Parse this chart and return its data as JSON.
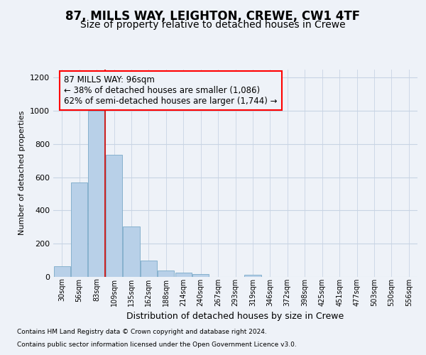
{
  "title1": "87, MILLS WAY, LEIGHTON, CREWE, CW1 4TF",
  "title2": "Size of property relative to detached houses in Crewe",
  "xlabel": "Distribution of detached houses by size in Crewe",
  "ylabel": "Number of detached properties",
  "footer1": "Contains HM Land Registry data © Crown copyright and database right 2024.",
  "footer2": "Contains public sector information licensed under the Open Government Licence v3.0.",
  "annotation_line1": "87 MILLS WAY: 96sqm",
  "annotation_line2": "← 38% of detached houses are smaller (1,086)",
  "annotation_line3": "62% of semi-detached houses are larger (1,744) →",
  "bar_labels": [
    "30sqm",
    "56sqm",
    "83sqm",
    "109sqm",
    "135sqm",
    "162sqm",
    "188sqm",
    "214sqm",
    "240sqm",
    "267sqm",
    "293sqm",
    "319sqm",
    "346sqm",
    "372sqm",
    "398sqm",
    "425sqm",
    "451sqm",
    "477sqm",
    "503sqm",
    "530sqm",
    "556sqm"
  ],
  "bar_values": [
    62,
    567,
    1000,
    735,
    302,
    97,
    37,
    24,
    15,
    0,
    0,
    13,
    0,
    0,
    0,
    0,
    0,
    0,
    0,
    0,
    0
  ],
  "bar_color": "#b8d0e8",
  "bar_edgecolor": "#7aaac8",
  "red_line_x": 2.5,
  "ylim": [
    0,
    1250
  ],
  "yticks": [
    0,
    200,
    400,
    600,
    800,
    1000,
    1200
  ],
  "background_color": "#eef2f8",
  "plot_background": "#eef2f8",
  "grid_color": "#c8d4e4",
  "title1_fontsize": 12,
  "title2_fontsize": 10,
  "annotation_fontsize": 8.5
}
